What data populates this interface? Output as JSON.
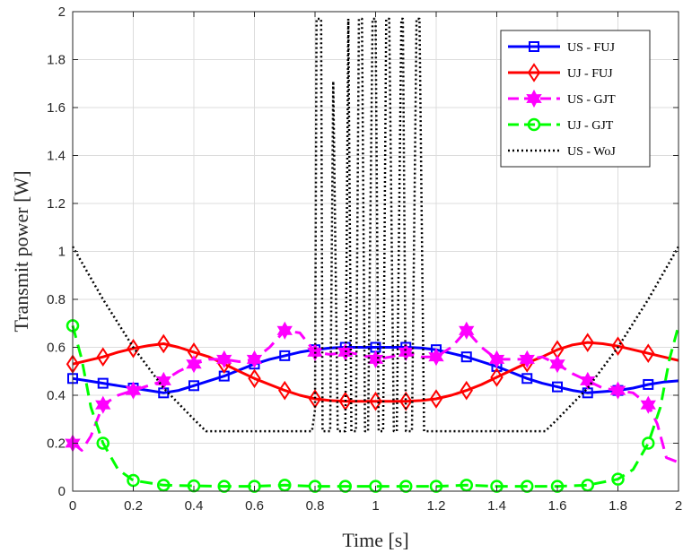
{
  "chart_data": {
    "type": "line",
    "title": "",
    "xlabel": "Time [s]",
    "ylabel": "Transmit power [W]",
    "xlim": [
      0,
      2
    ],
    "ylim": [
      0,
      2
    ],
    "xticks": [
      "0",
      "0.2",
      "0.4",
      "0.6",
      "0.8",
      "1",
      "1.2",
      "1.4",
      "1.6",
      "1.8",
      "2"
    ],
    "yticks": [
      "0",
      "0.2",
      "0.4",
      "0.6",
      "0.8",
      "1",
      "1.2",
      "1.4",
      "1.6",
      "1.8",
      "2"
    ],
    "grid": true,
    "legend_position": "top-right",
    "series": [
      {
        "name": "US - FUJ",
        "color": "#0000ff",
        "line": "solid",
        "marker": "square",
        "x": [
          0,
          0.05,
          0.1,
          0.15,
          0.2,
          0.25,
          0.3,
          0.35,
          0.4,
          0.45,
          0.5,
          0.55,
          0.6,
          0.65,
          0.7,
          0.75,
          0.8,
          0.85,
          0.9,
          0.95,
          1.0,
          1.05,
          1.1,
          1.15,
          1.2,
          1.25,
          1.3,
          1.35,
          1.4,
          1.45,
          1.5,
          1.55,
          1.6,
          1.65,
          1.7,
          1.75,
          1.8,
          1.85,
          1.9,
          1.95,
          2.0
        ],
        "y": [
          0.47,
          0.46,
          0.45,
          0.44,
          0.43,
          0.42,
          0.41,
          0.42,
          0.44,
          0.46,
          0.48,
          0.505,
          0.53,
          0.55,
          0.565,
          0.58,
          0.59,
          0.597,
          0.6,
          0.6,
          0.6,
          0.6,
          0.6,
          0.597,
          0.59,
          0.575,
          0.56,
          0.54,
          0.52,
          0.495,
          0.47,
          0.45,
          0.435,
          0.42,
          0.41,
          0.415,
          0.42,
          0.43,
          0.445,
          0.455,
          0.46
        ],
        "marker_x": [
          0,
          0.1,
          0.2,
          0.3,
          0.4,
          0.5,
          0.6,
          0.7,
          0.8,
          0.9,
          1.0,
          1.1,
          1.2,
          1.3,
          1.4,
          1.5,
          1.6,
          1.7,
          1.8,
          1.9
        ]
      },
      {
        "name": "UJ - FUJ",
        "color": "#ff0000",
        "line": "solid",
        "marker": "diamond",
        "x": [
          0,
          0.05,
          0.1,
          0.15,
          0.2,
          0.25,
          0.3,
          0.35,
          0.4,
          0.45,
          0.5,
          0.55,
          0.6,
          0.65,
          0.7,
          0.75,
          0.8,
          0.85,
          0.9,
          0.95,
          1.0,
          1.05,
          1.1,
          1.15,
          1.2,
          1.25,
          1.3,
          1.35,
          1.4,
          1.45,
          1.5,
          1.55,
          1.6,
          1.65,
          1.7,
          1.75,
          1.8,
          1.85,
          1.9,
          1.95,
          2.0
        ],
        "y": [
          0.53,
          0.545,
          0.56,
          0.58,
          0.595,
          0.607,
          0.615,
          0.6,
          0.58,
          0.56,
          0.53,
          0.5,
          0.47,
          0.445,
          0.42,
          0.4,
          0.385,
          0.378,
          0.375,
          0.375,
          0.375,
          0.375,
          0.375,
          0.378,
          0.385,
          0.4,
          0.42,
          0.445,
          0.475,
          0.505,
          0.535,
          0.56,
          0.59,
          0.61,
          0.62,
          0.615,
          0.605,
          0.59,
          0.575,
          0.56,
          0.545
        ],
        "marker_x": [
          0,
          0.1,
          0.2,
          0.3,
          0.4,
          0.5,
          0.6,
          0.7,
          0.8,
          0.9,
          1.0,
          1.1,
          1.2,
          1.3,
          1.4,
          1.5,
          1.6,
          1.7,
          1.8,
          1.9
        ]
      },
      {
        "name": "US - GJT",
        "color": "#ff00ff",
        "line": "dashed",
        "marker": "hexagram",
        "x": [
          0,
          0.03,
          0.06,
          0.1,
          0.15,
          0.2,
          0.25,
          0.3,
          0.35,
          0.4,
          0.45,
          0.5,
          0.55,
          0.6,
          0.65,
          0.7,
          0.75,
          0.8,
          0.85,
          0.9,
          0.95,
          1.0,
          1.05,
          1.1,
          1.15,
          1.2,
          1.25,
          1.3,
          1.35,
          1.4,
          1.45,
          1.5,
          1.55,
          1.6,
          1.65,
          1.7,
          1.75,
          1.8,
          1.85,
          1.9,
          1.93,
          1.96,
          2.0
        ],
        "y": [
          0.2,
          0.17,
          0.23,
          0.36,
          0.4,
          0.42,
          0.44,
          0.46,
          0.5,
          0.53,
          0.55,
          0.55,
          0.54,
          0.55,
          0.6,
          0.67,
          0.66,
          0.58,
          0.57,
          0.58,
          0.57,
          0.55,
          0.56,
          0.58,
          0.56,
          0.56,
          0.6,
          0.67,
          0.6,
          0.55,
          0.55,
          0.55,
          0.56,
          0.53,
          0.49,
          0.46,
          0.43,
          0.42,
          0.41,
          0.36,
          0.28,
          0.14,
          0.12
        ],
        "marker_x": [
          0,
          0.1,
          0.2,
          0.3,
          0.4,
          0.5,
          0.6,
          0.7,
          0.8,
          0.9,
          1.0,
          1.1,
          1.2,
          1.3,
          1.4,
          1.5,
          1.6,
          1.7,
          1.8,
          1.9
        ]
      },
      {
        "name": "UJ - GJT",
        "color": "#00ff00",
        "line": "dashed",
        "marker": "circle",
        "x": [
          0,
          0.03,
          0.06,
          0.1,
          0.15,
          0.2,
          0.3,
          0.4,
          0.5,
          0.6,
          0.7,
          0.8,
          0.9,
          1.0,
          1.1,
          1.2,
          1.3,
          1.4,
          1.5,
          1.6,
          1.7,
          1.8,
          1.85,
          1.9,
          1.94,
          1.97,
          2.0
        ],
        "y": [
          0.69,
          0.55,
          0.35,
          0.2,
          0.09,
          0.045,
          0.025,
          0.022,
          0.02,
          0.02,
          0.025,
          0.02,
          0.02,
          0.02,
          0.02,
          0.02,
          0.025,
          0.02,
          0.02,
          0.02,
          0.025,
          0.05,
          0.09,
          0.2,
          0.35,
          0.55,
          0.69
        ],
        "marker_x": [
          0,
          0.1,
          0.2,
          0.3,
          0.4,
          0.5,
          0.6,
          0.7,
          0.8,
          0.9,
          1.0,
          1.1,
          1.2,
          1.3,
          1.4,
          1.5,
          1.6,
          1.7,
          1.8,
          1.9
        ]
      },
      {
        "name": "US - WoJ",
        "color": "#000000",
        "line": "dotted",
        "marker": "none",
        "x": [
          0,
          0.1,
          0.2,
          0.3,
          0.4,
          0.44,
          0.6,
          0.79,
          0.8,
          0.805,
          0.82,
          0.825,
          0.835,
          0.84,
          0.85,
          0.86,
          0.875,
          0.885,
          0.9,
          0.91,
          0.92,
          0.935,
          0.945,
          0.955,
          0.965,
          0.975,
          0.99,
          1.0,
          1.01,
          1.025,
          1.035,
          1.045,
          1.06,
          1.07,
          1.085,
          1.09,
          1.1,
          1.11,
          1.12,
          1.135,
          1.145,
          1.16,
          1.165,
          1.2,
          1.4,
          1.56,
          1.6,
          1.7,
          1.8,
          1.9,
          2.0
        ],
        "y": [
          1.02,
          0.8,
          0.6,
          0.43,
          0.3,
          0.25,
          0.25,
          0.25,
          0.34,
          1.97,
          1.97,
          0.25,
          0.25,
          0.25,
          0.25,
          1.71,
          0.25,
          0.25,
          0.25,
          1.97,
          0.25,
          0.25,
          1.97,
          1.97,
          0.25,
          0.25,
          1.97,
          1.97,
          0.25,
          0.25,
          1.97,
          1.97,
          0.25,
          0.25,
          1.97,
          1.97,
          0.25,
          0.25,
          0.25,
          1.97,
          1.97,
          0.25,
          0.25,
          0.25,
          0.25,
          0.25,
          0.3,
          0.43,
          0.6,
          0.8,
          1.02
        ],
        "marker_x": []
      }
    ]
  }
}
